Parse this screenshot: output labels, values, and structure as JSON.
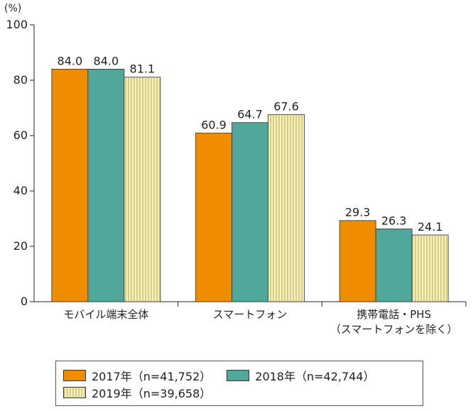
{
  "chart_data": {
    "type": "bar",
    "unit_label": "(%)",
    "ylim": [
      0,
      100
    ],
    "yticks": [
      0,
      20,
      40,
      60,
      80,
      100
    ],
    "categories": [
      [
        "モバイル端末全体"
      ],
      [
        "スマートフォン"
      ],
      [
        "携帯電話・PHS",
        "（スマートフォンを除く）"
      ]
    ],
    "series": [
      {
        "name": "2017年（n=41,752）",
        "color": "#f08c00",
        "values": [
          84.0,
          60.9,
          29.3
        ]
      },
      {
        "name": "2018年（n=42,744）",
        "color": "#4fa89a",
        "values": [
          84.0,
          64.7,
          26.3
        ]
      },
      {
        "name": "2019年（n=39,658）",
        "color": "#e9e1a6",
        "values": [
          81.1,
          67.6,
          24.1
        ]
      }
    ],
    "grid": false,
    "legend_position": "bottom"
  }
}
